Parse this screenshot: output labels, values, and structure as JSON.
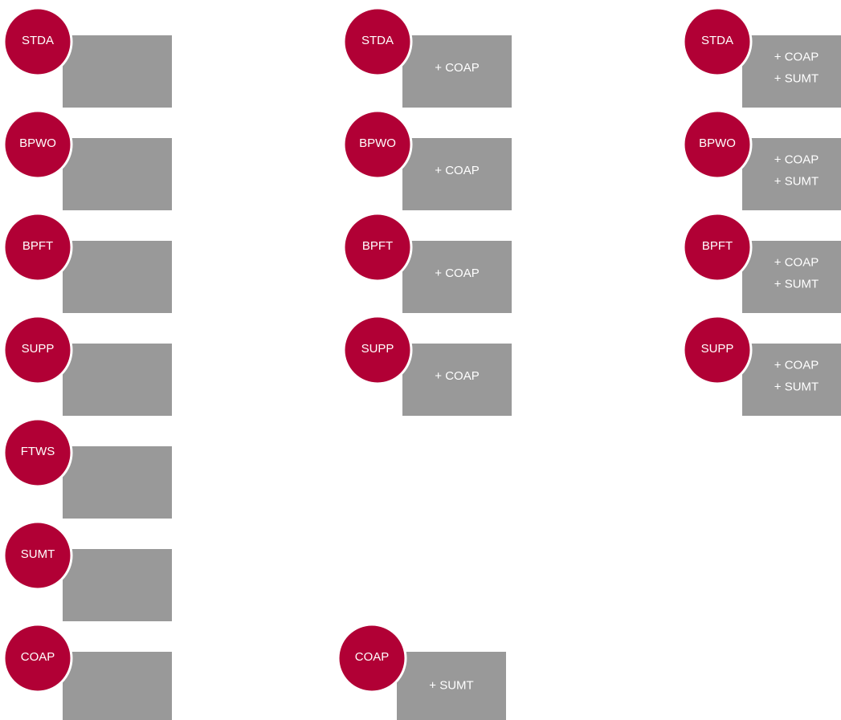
{
  "columns": [
    {
      "items": [
        {
          "label": "STDA",
          "addons": []
        },
        {
          "label": "BPWO",
          "addons": []
        },
        {
          "label": "BPFT",
          "addons": []
        },
        {
          "label": "SUPP",
          "addons": []
        },
        {
          "label": "FTWS",
          "addons": []
        },
        {
          "label": "SUMT",
          "addons": []
        },
        {
          "label": "COAP",
          "addons": []
        }
      ]
    },
    {
      "items": [
        {
          "label": "STDA",
          "addons": [
            "+ COAP"
          ]
        },
        {
          "label": "BPWO",
          "addons": [
            "+ COAP"
          ]
        },
        {
          "label": "BPFT",
          "addons": [
            "+ COAP"
          ]
        },
        {
          "label": "SUPP",
          "addons": [
            "+ COAP"
          ]
        },
        {
          "label": "COAP",
          "addons": [
            "+ SUMT"
          ]
        }
      ]
    },
    {
      "items": [
        {
          "label": "STDA",
          "addons": [
            "+ COAP",
            "+ SUMT"
          ]
        },
        {
          "label": "BPWO",
          "addons": [
            "+ COAP",
            "+ SUMT"
          ]
        },
        {
          "label": "BPFT",
          "addons": [
            "+ COAP",
            "+ SUMT"
          ]
        },
        {
          "label": "SUPP",
          "addons": [
            "+ COAP",
            "+ SUMT"
          ]
        }
      ]
    }
  ]
}
